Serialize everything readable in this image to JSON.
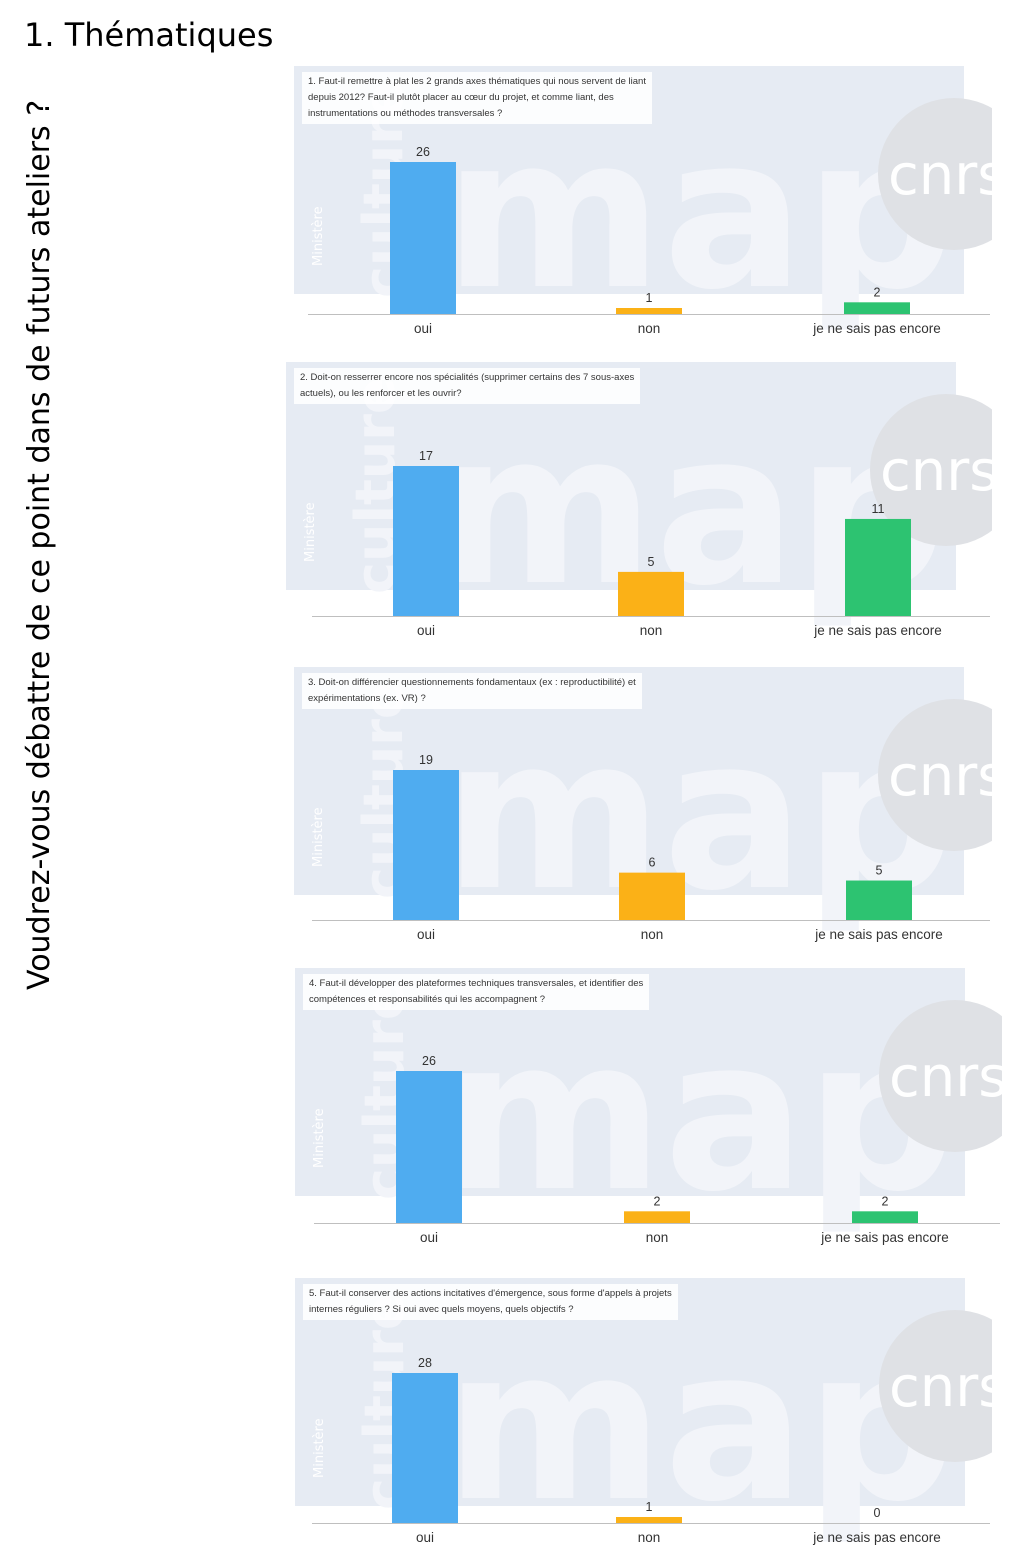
{
  "page": {
    "title": "1. Thématiques",
    "side_question": "Voudrez-vous débattre de ce point dans de futurs ateliers ?"
  },
  "colors": [
    "#4facf0",
    "#fbb117",
    "#2dc371"
  ],
  "watermark": {
    "big_word": "map",
    "vertical_word": "culture",
    "small_word": "Ministère",
    "logo": "cnrs"
  },
  "chart_data": [
    {
      "type": "bar",
      "title": "1. Faut-il remettre à plat les 2 grands axes thématiques qui nous servent de liant depuis 2012? Faut-il plutôt placer au cœur du projet, et comme liant, des instrumentations ou méthodes transversales ?",
      "title_lines": [
        "1. Faut-il remettre à plat les 2 grands axes thématiques qui nous servent de liant",
        "depuis 2012? Faut-il plutôt placer au cœur du projet, et comme liant, des",
        "instrumentations ou méthodes transversales ?"
      ],
      "categories": [
        "oui",
        "non",
        "je ne sais pas encore"
      ],
      "values": [
        26,
        1,
        2
      ],
      "data_labels": [
        "26",
        "1",
        "2"
      ],
      "ylim": [
        0,
        26
      ]
    },
    {
      "type": "bar",
      "title": "2. Doit-on resserrer encore nos spécialités (supprimer certains des 7 sous-axes actuels), ou les renforcer et les ouvrir?",
      "title_lines": [
        "2. Doit-on resserrer encore nos spécialités (supprimer certains des 7 sous-axes",
        "actuels), ou les renforcer et les ouvrir?"
      ],
      "categories": [
        "oui",
        "non",
        "je ne sais pas encore"
      ],
      "values": [
        17,
        5,
        11
      ],
      "data_labels": [
        "17",
        "5",
        "11"
      ],
      "ylim": [
        0,
        17
      ]
    },
    {
      "type": "bar",
      "title": "3. Doit-on différencier questionnements fondamentaux (ex : reproductibilité) et expérimentations (ex. VR) ?",
      "title_lines": [
        "3. Doit-on différencier questionnements fondamentaux (ex : reproductibilité) et",
        "expérimentations (ex. VR) ?"
      ],
      "categories": [
        "oui",
        "non",
        "je ne sais pas encore"
      ],
      "values": [
        19,
        6,
        5
      ],
      "data_labels": [
        "19",
        "6",
        "5"
      ],
      "ylim": [
        0,
        19
      ]
    },
    {
      "type": "bar",
      "title": "4. Faut-il développer des plateformes techniques transversales, et identifier des compétences et responsabilités qui les accompagnent ?",
      "title_lines": [
        "4. Faut-il développer des plateformes techniques transversales, et identifier des",
        "compétences et responsabilités qui les accompagnent ?"
      ],
      "categories": [
        "oui",
        "non",
        "je ne sais pas encore"
      ],
      "values": [
        26,
        2,
        2
      ],
      "data_labels": [
        "26",
        "2",
        "2"
      ],
      "ylim": [
        0,
        26
      ]
    },
    {
      "type": "bar",
      "title": "5. Faut-il conserver des actions incitatives d'émergence, sous forme d'appels à projets internes réguliers ? Si oui avec quels moyens, quels objectifs ?",
      "title_lines": [
        "5. Faut-il conserver des actions incitatives d'émergence, sous forme d'appels à projets",
        "internes réguliers ? Si oui avec quels moyens, quels objectifs ?"
      ],
      "categories": [
        "oui",
        "non",
        "je ne sais pas encore"
      ],
      "values": [
        28,
        1,
        0
      ],
      "data_labels": [
        "28",
        "1",
        "0"
      ],
      "ylim": [
        0,
        28
      ]
    }
  ]
}
